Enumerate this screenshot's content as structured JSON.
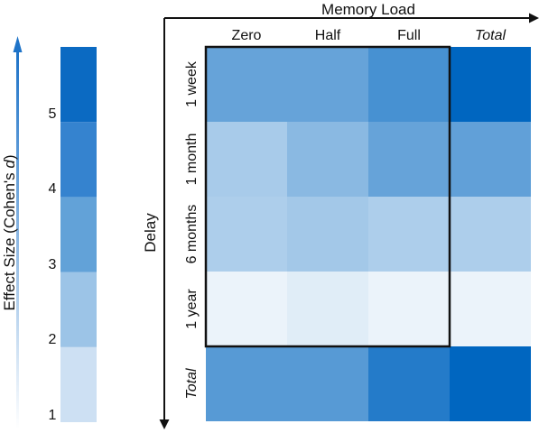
{
  "chart_data": [
    {
      "type": "heatmap",
      "title": "",
      "xlabel": "Memory Load",
      "ylabel": "Delay",
      "x_categories": [
        "Zero",
        "Half",
        "Full",
        "Total"
      ],
      "y_categories": [
        "1 week",
        "1 month",
        "6 months",
        "1 year",
        "Total"
      ],
      "values": [
        [
          3.0,
          3.0,
          3.6,
          5.0
        ],
        [
          1.7,
          2.3,
          3.0,
          3.1
        ],
        [
          1.6,
          1.8,
          1.6,
          1.6
        ],
        [
          0.4,
          0.6,
          0.4,
          0.4
        ],
        [
          3.3,
          3.3,
          4.3,
          5.0
        ]
      ],
      "highlight_box": {
        "rows": [
          "1 week",
          "1 month",
          "6 months",
          "1 year"
        ],
        "cols": [
          "Zero",
          "Half",
          "Full"
        ]
      },
      "italic_categories": [
        "Total"
      ],
      "colors": {
        "low": "#ffffff",
        "high": "#0066c0"
      },
      "value_range": [
        0,
        5
      ]
    },
    {
      "type": "colorbar",
      "label": "Effect Size (Cohen's d)",
      "label_parts": {
        "main": "Effect Size (Cohen's ",
        "italic": "d",
        "close": ")"
      },
      "ticks": [
        "1",
        "2",
        "3",
        "4",
        "5"
      ],
      "colors": [
        "#cde0f3",
        "#9cc4e7",
        "#62a2d8",
        "#3583cf",
        "#0b6ac2"
      ]
    }
  ]
}
